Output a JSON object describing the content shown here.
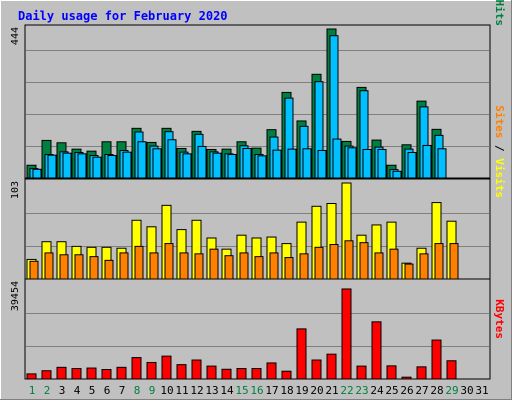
{
  "chart_data": [
    {
      "type": "bar",
      "title": "Daily usage for February 2020",
      "ylabel_right": [
        "Pages",
        " / ",
        "Files",
        " / ",
        "Hits"
      ],
      "ytick_label": "444",
      "ylim": [
        0,
        444
      ],
      "categories": [
        "1",
        "2",
        "3",
        "4",
        "5",
        "6",
        "7",
        "8",
        "9",
        "10",
        "11",
        "12",
        "13",
        "14",
        "15",
        "16",
        "17",
        "18",
        "19",
        "20",
        "21",
        "22",
        "23",
        "24",
        "25",
        "26",
        "27",
        "28",
        "29",
        "30",
        "31"
      ],
      "weekend_days": [
        "1",
        "2",
        "8",
        "9",
        "15",
        "16",
        "22",
        "23",
        "29"
      ],
      "series": [
        {
          "name": "Hits",
          "values": [
            38,
            112,
            105,
            86,
            80,
            108,
            108,
            148,
            106,
            148,
            88,
            139,
            85,
            86,
            108,
            89,
            144,
            255,
            170,
            309,
            444,
            109,
            270,
            113,
            38,
            99,
            229,
            145,
            0,
            0,
            0
          ]
        },
        {
          "name": "Files",
          "values": [
            28,
            70,
            78,
            76,
            67,
            70,
            82,
            137,
            95,
            138,
            77,
            130,
            78,
            72,
            96,
            70,
            122,
            238,
            154,
            287,
            424,
            95,
            260,
            92,
            25,
            86,
            212,
            127,
            0,
            0,
            0
          ]
        },
        {
          "name": "Pages",
          "values": [
            26,
            68,
            74,
            72,
            62,
            67,
            77,
            108,
            87,
            114,
            72,
            94,
            74,
            70,
            88,
            66,
            83,
            86,
            87,
            82,
            116,
            90,
            85,
            85,
            20,
            76,
            97,
            87,
            0,
            0,
            0
          ]
        }
      ],
      "colors": {
        "Hits": "#008040",
        "Files": "#00c0ff",
        "Pages": "#00c0ff"
      }
    },
    {
      "type": "bar",
      "ylabel_right": [
        "Sites",
        " / ",
        "Visits"
      ],
      "ytick_label": "103",
      "ylim": [
        0,
        103
      ],
      "categories": [
        "1",
        "2",
        "3",
        "4",
        "5",
        "6",
        "7",
        "8",
        "9",
        "10",
        "11",
        "12",
        "13",
        "14",
        "15",
        "16",
        "17",
        "18",
        "19",
        "20",
        "21",
        "22",
        "23",
        "24",
        "25",
        "26",
        "27",
        "28",
        "29",
        "30",
        "31"
      ],
      "series": [
        {
          "name": "Visits",
          "values": [
            21,
            40,
            40,
            35,
            34,
            34,
            33,
            63,
            56,
            79,
            53,
            63,
            44,
            32,
            47,
            44,
            45,
            38,
            61,
            78,
            81,
            103,
            47,
            58,
            61,
            17,
            33,
            82,
            62,
            0,
            0
          ]
        },
        {
          "name": "Sites",
          "values": [
            19,
            28,
            26,
            26,
            24,
            20,
            28,
            35,
            28,
            38,
            28,
            27,
            32,
            25,
            28,
            24,
            28,
            23,
            27,
            34,
            37,
            41,
            39,
            28,
            32,
            16,
            27,
            38,
            38,
            0,
            0
          ]
        }
      ],
      "colors": {
        "Visits": "#ffff00",
        "Sites": "#ff8000"
      }
    },
    {
      "type": "bar",
      "ylabel_right": [
        "KBytes"
      ],
      "ytick_label": "39454",
      "ylim": [
        0,
        39454
      ],
      "categories": [
        "1",
        "2",
        "3",
        "4",
        "5",
        "6",
        "7",
        "8",
        "9",
        "10",
        "11",
        "12",
        "13",
        "14",
        "15",
        "16",
        "17",
        "18",
        "19",
        "20",
        "21",
        "22",
        "23",
        "24",
        "25",
        "26",
        "27",
        "28",
        "29",
        "30",
        "31"
      ],
      "series": [
        {
          "name": "KBytes",
          "values": [
            2100,
            3400,
            4800,
            4300,
            4500,
            3900,
            4800,
            8800,
            6800,
            9400,
            5900,
            7800,
            5300,
            4000,
            4300,
            4300,
            6600,
            3200,
            20600,
            7800,
            10200,
            37000,
            5300,
            23500,
            5400,
            750,
            5000,
            16000,
            7500,
            0,
            0
          ]
        }
      ],
      "colors": {
        "KBytes": "#ff0000"
      }
    }
  ]
}
